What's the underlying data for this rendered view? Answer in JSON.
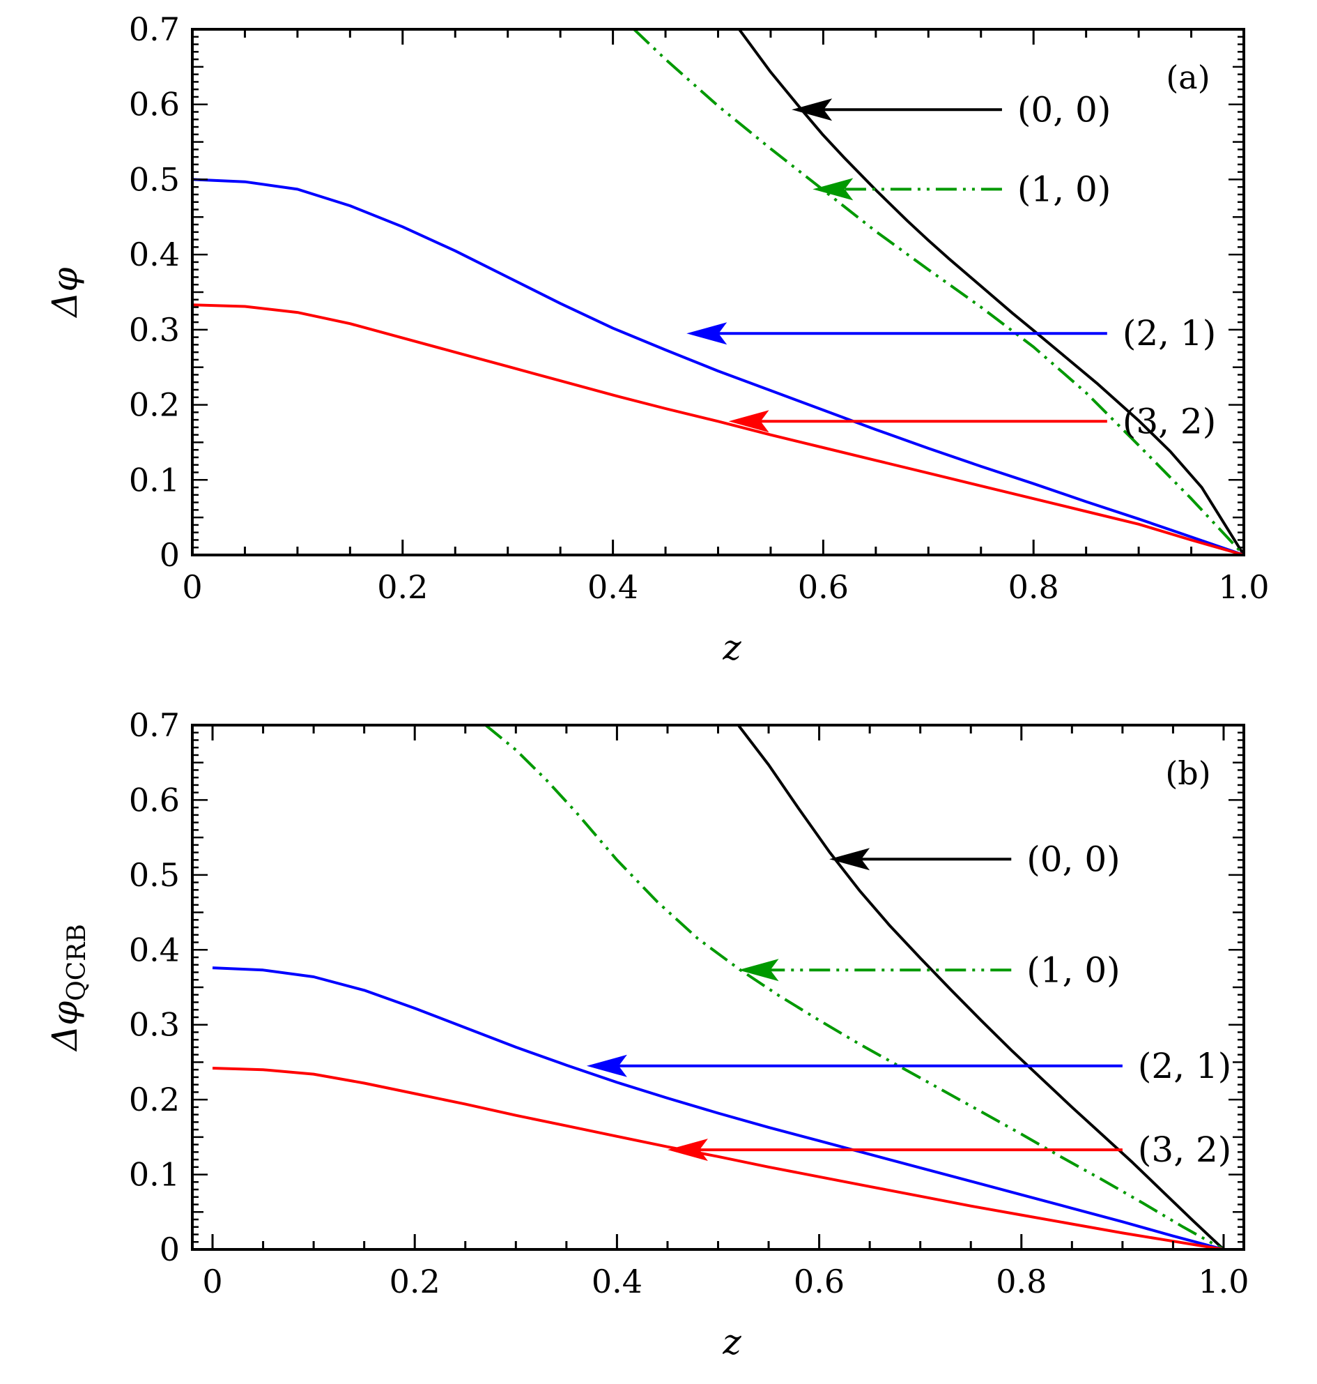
{
  "chart_data": [
    {
      "type": "line",
      "panel_label": "(a)",
      "xlabel": "z",
      "ylabel": "Δφ",
      "xlim": [
        0,
        1.0
      ],
      "ylim": [
        0,
        0.7
      ],
      "xticks": [
        "0",
        "0.2",
        "0.4",
        "0.6",
        "0.8",
        "1.0"
      ],
      "xtick_values": [
        0,
        0.2,
        0.4,
        0.6,
        0.8,
        1.0
      ],
      "yticks": [
        "0",
        "0.1",
        "0.2",
        "0.3",
        "0.4",
        "0.5",
        "0.6",
        "0.7"
      ],
      "ytick_values": [
        0,
        0.1,
        0.2,
        0.3,
        0.4,
        0.5,
        0.6,
        0.7
      ],
      "grid": false,
      "series": [
        {
          "name": "(0, 0)",
          "color": "#000000",
          "dash": "solid",
          "x": [
            0.52,
            0.55,
            0.58,
            0.6,
            0.62,
            0.65,
            0.68,
            0.7,
            0.72,
            0.75,
            0.78,
            0.8,
            0.83,
            0.86,
            0.9,
            0.93,
            0.96,
            1.0
          ],
          "y": [
            0.7,
            0.643,
            0.592,
            0.559,
            0.529,
            0.486,
            0.445,
            0.419,
            0.394,
            0.358,
            0.322,
            0.299,
            0.264,
            0.229,
            0.179,
            0.138,
            0.09,
            0.0
          ]
        },
        {
          "name": "(1, 0)",
          "color": "#009900",
          "dash": "dashdotdot",
          "x": [
            0.42,
            0.45,
            0.5,
            0.55,
            0.6,
            0.65,
            0.7,
            0.75,
            0.8,
            0.85,
            0.9,
            0.95,
            1.0
          ],
          "y": [
            0.7,
            0.66,
            0.598,
            0.541,
            0.486,
            0.431,
            0.38,
            0.33,
            0.277,
            0.216,
            0.146,
            0.075,
            0.0
          ]
        },
        {
          "name": "(2, 1)",
          "color": "#0000ff",
          "dash": "solid",
          "x": [
            0,
            0.05,
            0.1,
            0.15,
            0.2,
            0.25,
            0.3,
            0.35,
            0.4,
            0.45,
            0.5,
            0.55,
            0.6,
            0.65,
            0.7,
            0.75,
            0.8,
            0.85,
            0.9,
            0.95,
            1.0
          ],
          "y": [
            0.5,
            0.497,
            0.487,
            0.465,
            0.437,
            0.405,
            0.37,
            0.335,
            0.302,
            0.273,
            0.245,
            0.219,
            0.193,
            0.167,
            0.142,
            0.118,
            0.095,
            0.071,
            0.048,
            0.024,
            0.0
          ]
        },
        {
          "name": "(3, 2)",
          "color": "#ff0000",
          "dash": "solid",
          "x": [
            0,
            0.05,
            0.1,
            0.15,
            0.2,
            0.25,
            0.3,
            0.35,
            0.4,
            0.45,
            0.5,
            0.55,
            0.6,
            0.65,
            0.7,
            0.75,
            0.8,
            0.85,
            0.9,
            0.95,
            1.0
          ],
          "y": [
            0.333,
            0.331,
            0.323,
            0.308,
            0.289,
            0.27,
            0.251,
            0.232,
            0.213,
            0.195,
            0.178,
            0.16,
            0.143,
            0.126,
            0.109,
            0.092,
            0.075,
            0.058,
            0.041,
            0.02,
            0.0
          ]
        }
      ],
      "annotations": [
        {
          "text": "(0, 0)",
          "series": "(0, 0)",
          "tip": [
            0.57,
            0.593
          ],
          "from": [
            0.77,
            0.593
          ]
        },
        {
          "text": "(1, 0)",
          "series": "(1, 0)",
          "tip": [
            0.59,
            0.487
          ],
          "from": [
            0.77,
            0.487
          ]
        },
        {
          "text": "(2, 1)",
          "series": "(2, 1)",
          "tip": [
            0.47,
            0.295
          ],
          "from": [
            0.87,
            0.295
          ]
        },
        {
          "text": "(3, 2)",
          "series": "(3, 2)",
          "tip": [
            0.51,
            0.178
          ],
          "from": [
            0.87,
            0.178
          ]
        }
      ]
    },
    {
      "type": "line",
      "panel_label": "(b)",
      "xlabel": "z",
      "ylabel": "Δφ",
      "ylabel_subscript": "QCRB",
      "xlim": [
        -0.02,
        1.02
      ],
      "ylim": [
        0,
        0.7
      ],
      "xticks": [
        "0",
        "0.2",
        "0.4",
        "0.6",
        "0.8",
        "1.0"
      ],
      "xtick_values": [
        0,
        0.2,
        0.4,
        0.6,
        0.8,
        1.0
      ],
      "yticks": [
        "0",
        "0.1",
        "0.2",
        "0.3",
        "0.4",
        "0.5",
        "0.6",
        "0.7"
      ],
      "ytick_values": [
        0,
        0.1,
        0.2,
        0.3,
        0.4,
        0.5,
        0.6,
        0.7
      ],
      "grid": false,
      "series": [
        {
          "name": "(0, 0)",
          "color": "#000000",
          "dash": "solid",
          "x": [
            0.52,
            0.55,
            0.58,
            0.61,
            0.64,
            0.67,
            0.7,
            0.73,
            0.76,
            0.79,
            0.82,
            0.85,
            0.88,
            0.91,
            0.94,
            0.97,
            1.0
          ],
          "y": [
            0.7,
            0.647,
            0.588,
            0.531,
            0.479,
            0.432,
            0.389,
            0.347,
            0.306,
            0.266,
            0.228,
            0.19,
            0.153,
            0.116,
            0.077,
            0.038,
            0.0
          ]
        },
        {
          "name": "(1, 0)",
          "color": "#009900",
          "dash": "dashdotdot",
          "x": [
            0.27,
            0.3,
            0.33,
            0.36,
            0.4,
            0.44,
            0.48,
            0.52,
            0.56,
            0.6,
            0.64,
            0.68,
            0.72,
            0.76,
            0.8,
            0.84,
            0.88,
            0.92,
            0.96,
            1.0
          ],
          "y": [
            0.7,
            0.667,
            0.627,
            0.583,
            0.52,
            0.464,
            0.415,
            0.375,
            0.339,
            0.306,
            0.274,
            0.244,
            0.214,
            0.184,
            0.154,
            0.123,
            0.093,
            0.062,
            0.03,
            0.0
          ]
        },
        {
          "name": "(2, 1)",
          "color": "#0000ff",
          "dash": "solid",
          "x": [
            0,
            0.05,
            0.1,
            0.15,
            0.2,
            0.25,
            0.3,
            0.35,
            0.4,
            0.45,
            0.5,
            0.55,
            0.6,
            0.65,
            0.7,
            0.75,
            0.8,
            0.85,
            0.9,
            0.95,
            1.0
          ],
          "y": [
            0.376,
            0.373,
            0.364,
            0.346,
            0.322,
            0.296,
            0.27,
            0.246,
            0.223,
            0.202,
            0.182,
            0.163,
            0.145,
            0.127,
            0.109,
            0.091,
            0.073,
            0.055,
            0.037,
            0.018,
            0.0
          ]
        },
        {
          "name": "(3, 2)",
          "color": "#ff0000",
          "dash": "solid",
          "x": [
            0,
            0.05,
            0.1,
            0.15,
            0.2,
            0.25,
            0.3,
            0.35,
            0.4,
            0.45,
            0.5,
            0.55,
            0.6,
            0.65,
            0.7,
            0.75,
            0.8,
            0.85,
            0.9,
            0.95,
            1.0
          ],
          "y": [
            0.242,
            0.24,
            0.234,
            0.222,
            0.208,
            0.194,
            0.179,
            0.165,
            0.151,
            0.137,
            0.124,
            0.11,
            0.097,
            0.084,
            0.071,
            0.058,
            0.046,
            0.034,
            0.022,
            0.011,
            0.0
          ]
        }
      ],
      "annotations": [
        {
          "text": "(0, 0)",
          "series": "(0, 0)",
          "tip": [
            0.61,
            0.521
          ],
          "from": [
            0.79,
            0.521
          ]
        },
        {
          "text": "(1, 0)",
          "series": "(1, 0)",
          "tip": [
            0.52,
            0.373
          ],
          "from": [
            0.79,
            0.373
          ]
        },
        {
          "text": "(2, 1)",
          "series": "(2, 1)",
          "tip": [
            0.37,
            0.245
          ],
          "from": [
            0.9,
            0.245
          ]
        },
        {
          "text": "(3, 2)",
          "series": "(3, 2)",
          "tip": [
            0.45,
            0.133
          ],
          "from": [
            0.9,
            0.133
          ]
        }
      ]
    }
  ]
}
